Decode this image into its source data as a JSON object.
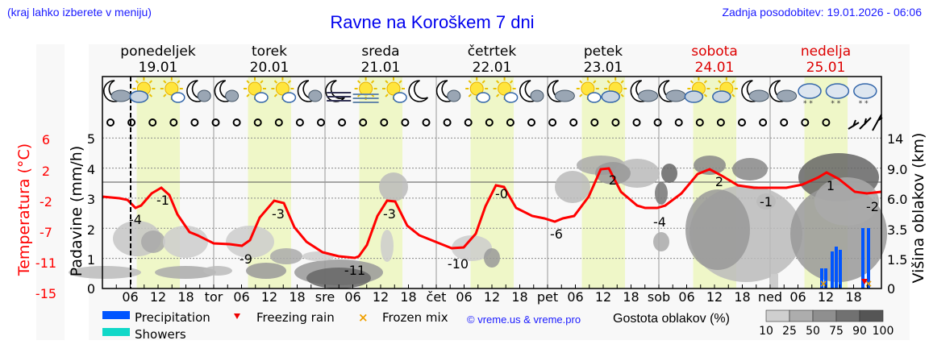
{
  "header": {
    "menu_hint": "(kraj lahko izberete v meniju)",
    "title": "Ravne na Koroškem 7 dni",
    "last_update": "Zadnja posodobitev: 19.01.2026 - 06:06"
  },
  "days": [
    {
      "name": "ponedeljek",
      "date": "19.01",
      "weekend": false
    },
    {
      "name": "torek",
      "date": "20.01",
      "weekend": false
    },
    {
      "name": "sreda",
      "date": "21.01",
      "weekend": false
    },
    {
      "name": "četrtek",
      "date": "22.01",
      "weekend": false
    },
    {
      "name": "petek",
      "date": "23.01",
      "weekend": false
    },
    {
      "name": "sobota",
      "date": "24.01",
      "weekend": true
    },
    {
      "name": "nedelja",
      "date": "25.01",
      "weekend": true
    }
  ],
  "x_axis": {
    "ticks": [
      "06",
      "12",
      "18",
      "tor",
      "06",
      "12",
      "18",
      "sre",
      "06",
      "12",
      "18",
      "čet",
      "06",
      "12",
      "18",
      "pet",
      "06",
      "12",
      "18",
      "sob",
      "06",
      "12",
      "18",
      "ned",
      "06",
      "12",
      "18"
    ]
  },
  "axes": {
    "temperature_label": "Temperatura (°C)",
    "temperature_ticks": [
      "6",
      "2",
      "-2",
      "-7",
      "-11",
      "-15"
    ],
    "precip_label": "Padavine (mm/h)",
    "precip_ticks": [
      "5",
      "4",
      "3",
      "2",
      "1",
      "0"
    ],
    "cloud_label": "Višina oblakov (km)",
    "cloud_ticks": [
      "14",
      "9.0",
      "6.0",
      "3.5",
      "1.5",
      "0"
    ]
  },
  "legend": {
    "precipitation": "Precipitation",
    "showers": "Showers",
    "freezing_rain": "Freezing rain",
    "frozen_mix": "Frozen mix",
    "copyright": "© vreme.us & vreme.pro",
    "cloud_density_label": "Gostota oblakov (%)",
    "cloud_density_scale": [
      "10",
      "25",
      "50",
      "75",
      "90",
      "100"
    ]
  },
  "colors": {
    "precipitation": "#0055ff",
    "showers": "#11d8c8",
    "freezing_rain": "#ee0000",
    "frozen_mix": "#f0a000",
    "temperature": "#ff0000",
    "weekend": "#dd0000",
    "daylight": "#eff7c8"
  },
  "weather_icons": [
    "night-cloudy",
    "day-partly-cloudy",
    "day-sun-cloud",
    "night-cloud",
    "night-cloud",
    "day-sun-cloud",
    "day-sun-cloud",
    "night-cloud",
    "night-fog",
    "day-fog",
    "day-sun-cloud",
    "night-clear",
    "night-cloud",
    "day-sun-cloud",
    "day-sun-cloud",
    "night-cloud",
    "night-cloudy",
    "day-sun-cloud",
    "day-partly-cloudy",
    "night-cloudy",
    "night-cloudy",
    "day-partly-cloudy",
    "day-partly-cloudy",
    "night-cloudy",
    "night-cloudy",
    "snow",
    "snow-sleet",
    "snow"
  ],
  "chart_data": {
    "type": "line",
    "title": "Ravne na Koroškem 7 dni",
    "xlabel": "",
    "ylabel": "Temperatura (°C)",
    "x": [
      "19.01 00",
      "19.01 06",
      "19.01 13",
      "19.01 18",
      "20.01 06",
      "20.01 13",
      "20.01 18",
      "21.01 06",
      "21.01 13",
      "21.01 18",
      "22.01 06",
      "22.01 13",
      "22.01 18",
      "23.01 06",
      "23.01 13",
      "23.01 18",
      "24.01 06",
      "24.01 13",
      "24.01 18",
      "25.01 06",
      "25.01 13",
      "25.01 22"
    ],
    "series": [
      {
        "name": "Temperatura (°C)",
        "values": [
          -2,
          -4,
          -1,
          -6,
          -9,
          -3,
          -7,
          -11,
          -3,
          -7,
          -10,
          0,
          -5,
          -6,
          2,
          -3,
          -4,
          2,
          -1,
          -1,
          1,
          -2
        ]
      },
      {
        "name": "Padavine (mm/h)",
        "values": [
          0,
          0,
          0,
          0,
          0,
          0,
          0,
          0,
          0,
          0,
          0,
          0,
          0,
          0,
          0,
          0,
          0,
          0,
          0,
          0,
          0.9,
          2.0
        ]
      }
    ],
    "temperature_labels": [
      {
        "time": "19.01 06",
        "value": -4
      },
      {
        "time": "19.01 13",
        "value": -1
      },
      {
        "time": "20.01 07",
        "value": -9
      },
      {
        "time": "20.01 13",
        "value": -3
      },
      {
        "time": "21.01 07",
        "value": -11
      },
      {
        "time": "21.01 13",
        "value": -3
      },
      {
        "time": "22.01 04",
        "value": -10
      },
      {
        "time": "22.01 13",
        "value": 0
      },
      {
        "time": "23.01 00",
        "value": -6
      },
      {
        "time": "23.01 14",
        "value": 2
      },
      {
        "time": "24.01 00",
        "value": -4
      },
      {
        "time": "24.01 14",
        "value": 2
      },
      {
        "time": "25.01 00",
        "value": -1
      },
      {
        "time": "25.01 13",
        "value": 1
      },
      {
        "time": "25.01 22",
        "value": -2
      }
    ],
    "precip_ylim": [
      0,
      5
    ],
    "temp_ylim": [
      -15,
      6
    ],
    "cloud_height_ticks_km": [
      0,
      1.5,
      3.5,
      6.0,
      9.0,
      14
    ],
    "grid": true,
    "legend_position": "bottom"
  }
}
